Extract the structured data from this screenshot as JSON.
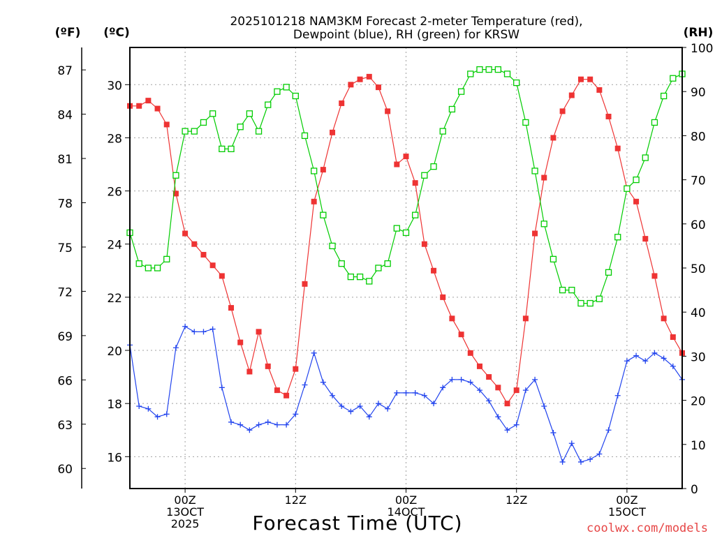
{
  "chart_data": {
    "type": "line",
    "title_line1": "2025101218 NAM3KM Forecast 2-meter Temperature (red),",
    "title_line2": "Dewpoint (blue), RH (green) for KRSW",
    "xlabel": "Forecast Time (UTC)",
    "footer": "coolwx.com/models",
    "left_unit_f": "(ºF)",
    "left_unit_c": "(ºC)",
    "right_unit": "(RH)",
    "x_unit": "forecast hour (0 = 2025-10-12 18Z)",
    "xlim": [
      0,
      60
    ],
    "ylim_c": [
      14.8,
      31.4
    ],
    "ylim_rh": [
      0,
      100
    ],
    "x_ticks": [
      {
        "x": 6,
        "lines": [
          "00Z",
          "13OCT",
          "2025"
        ]
      },
      {
        "x": 18,
        "lines": [
          "12Z"
        ]
      },
      {
        "x": 30,
        "lines": [
          "00Z",
          "14OCT"
        ]
      },
      {
        "x": 42,
        "lines": [
          "12Z"
        ]
      },
      {
        "x": 54,
        "lines": [
          "00Z",
          "15OCT"
        ]
      }
    ],
    "y_ticks_c": [
      16,
      18,
      20,
      22,
      24,
      26,
      28,
      30
    ],
    "y_ticks_f": [
      60,
      63,
      66,
      69,
      72,
      75,
      78,
      81,
      84,
      87
    ],
    "y_ticks_rh": [
      0,
      10,
      20,
      30,
      40,
      50,
      60,
      70,
      80,
      90,
      100
    ],
    "colors": {
      "temperature": "#ee3333",
      "dewpoint": "#2244ee",
      "rh": "#00cc00",
      "grid": "#a0a0a0"
    },
    "series": [
      {
        "name": "Temperature (ºC)",
        "axis": "c",
        "marker": "filled-square",
        "values": [
          29.2,
          29.2,
          29.4,
          29.1,
          28.5,
          25.9,
          24.4,
          24.0,
          23.6,
          23.2,
          22.8,
          21.6,
          20.3,
          19.2,
          20.7,
          19.4,
          18.5,
          18.3,
          19.3,
          22.5,
          25.6,
          26.8,
          28.2,
          29.3,
          30.0,
          30.2,
          30.3,
          29.9,
          29.0,
          27.0,
          27.3,
          26.3,
          24.0,
          23.0,
          22.0,
          21.2,
          20.6,
          19.9,
          19.4,
          19.0,
          18.6,
          18.0,
          18.5,
          21.2,
          24.4,
          26.5,
          28.0,
          29.0,
          29.6,
          30.2,
          30.2,
          29.8,
          28.8,
          27.6,
          26.1,
          25.6,
          24.2,
          22.8,
          21.2,
          20.5,
          19.9
        ]
      },
      {
        "name": "Dewpoint (ºC)",
        "axis": "c",
        "marker": "plus",
        "values": [
          20.2,
          17.9,
          17.8,
          17.5,
          17.6,
          20.1,
          20.9,
          20.7,
          20.7,
          20.8,
          18.6,
          17.3,
          17.2,
          17.0,
          17.2,
          17.3,
          17.2,
          17.2,
          17.6,
          18.7,
          19.9,
          18.8,
          18.3,
          17.9,
          17.7,
          17.9,
          17.5,
          18.0,
          17.8,
          18.4,
          18.4,
          18.4,
          18.3,
          18.0,
          18.6,
          18.9,
          18.9,
          18.8,
          18.5,
          18.1,
          17.5,
          17.0,
          17.2,
          18.5,
          18.9,
          17.9,
          16.9,
          15.8,
          16.5,
          15.8,
          15.9,
          16.1,
          17.0,
          18.3,
          19.6,
          19.8,
          19.6,
          19.9,
          19.7,
          19.4,
          18.9
        ]
      },
      {
        "name": "RH (%)",
        "axis": "rh",
        "marker": "open-square",
        "values": [
          58,
          51,
          50,
          50,
          52,
          71,
          81,
          81,
          83,
          85,
          77,
          77,
          82,
          85,
          81,
          87,
          90,
          91,
          89,
          80,
          72,
          62,
          55,
          51,
          48,
          48,
          47,
          50,
          51,
          59,
          58,
          62,
          71,
          73,
          81,
          86,
          90,
          94,
          95,
          95,
          95,
          94,
          92,
          83,
          72,
          60,
          52,
          45,
          45,
          42,
          42,
          43,
          49,
          57,
          68,
          70,
          75,
          83,
          89,
          93,
          94
        ]
      }
    ]
  }
}
